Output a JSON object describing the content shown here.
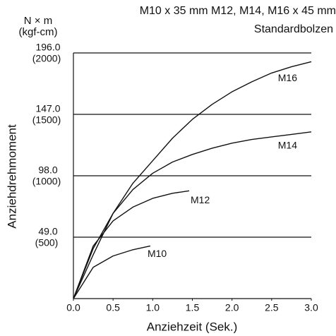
{
  "chart_data": {
    "type": "line",
    "title": "M10 x 35 mm M12, M14, M16 x 45 mm",
    "subtitle": "Standardbolzen",
    "y_unit": "N × m",
    "y_unit_secondary": "(kgf-cm)",
    "y_label": "Anziehdrehmoment",
    "x_label": "Anziehzeit (Sek.)",
    "xlim": [
      0,
      3
    ],
    "ylim": [
      0,
      196
    ],
    "xticks": [
      {
        "value": 0,
        "label": "0.0"
      },
      {
        "value": 0.5,
        "label": "0.5"
      },
      {
        "value": 1,
        "label": "1.0"
      },
      {
        "value": 1.5,
        "label": "1.5"
      },
      {
        "value": 2,
        "label": "2.0"
      },
      {
        "value": 2.5,
        "label": "2.5"
      },
      {
        "value": 3,
        "label": "3.0"
      }
    ],
    "yticks": [
      {
        "value": 49,
        "label": "49.0",
        "secondary_label": "(500)"
      },
      {
        "value": 98,
        "label": "98.0",
        "secondary_label": "(1000)"
      },
      {
        "value": 147,
        "label": "147.0",
        "secondary_label": "(1500)"
      },
      {
        "value": 196,
        "label": "196.0",
        "secondary_label": "(2000)"
      }
    ],
    "grid": true,
    "series": [
      {
        "name": "M10",
        "color": "#111111",
        "x": [
          0,
          0.25,
          0.5,
          0.75,
          0.97
        ],
        "values": [
          0,
          25,
          34,
          39,
          42
        ]
      },
      {
        "name": "M12",
        "color": "#111111",
        "x": [
          0,
          0.25,
          0.5,
          0.75,
          1.0,
          1.25,
          1.46
        ],
        "values": [
          0,
          42,
          62,
          73,
          80,
          84,
          86
        ]
      },
      {
        "name": "M14",
        "color": "#111111",
        "x": [
          0,
          0.25,
          0.5,
          0.75,
          1.0,
          1.25,
          1.5,
          1.75,
          2.0,
          2.25,
          2.5,
          2.75,
          3.0
        ],
        "values": [
          0,
          40,
          68,
          87,
          100,
          109,
          115,
          120,
          124,
          127,
          129,
          131,
          133
        ]
      },
      {
        "name": "M16",
        "color": "#111111",
        "x": [
          0,
          0.25,
          0.5,
          0.75,
          1.0,
          1.25,
          1.5,
          1.75,
          2.0,
          2.25,
          2.5,
          2.75,
          3.0
        ],
        "values": [
          0,
          35,
          68,
          92,
          110,
          128,
          143,
          155,
          165,
          173,
          180,
          185,
          189
        ]
      }
    ]
  }
}
